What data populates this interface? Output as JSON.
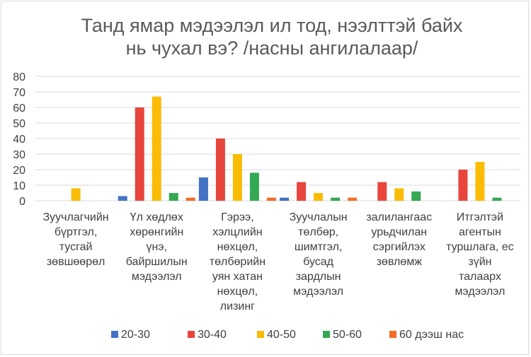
{
  "chart_data": {
    "type": "bar",
    "title": "Танд ямар мэдээлэл ил тод, нээлттэй байх нь чухал вэ? /насны ангилалаар/",
    "title_lines": [
      "Танд ямар мэдээлэл ил тод, нээлттэй байх",
      "нь чухал вэ? /насны ангилалаар/"
    ],
    "xlabel": "",
    "ylabel": "",
    "ylim": [
      0,
      80
    ],
    "yticks": [
      0,
      10,
      20,
      30,
      40,
      50,
      60,
      70,
      80
    ],
    "grid": true,
    "legend_position": "bottom",
    "categories": [
      "Зуучлагчийн бүртгэл, тусгай зөвшөөрөл",
      "Үл хөдлөх хөрөнгийн үнэ, байршилын мэдээлэл",
      "Гэрээ, хэлцлийн нөхцөл, төлбөрийн уян хатан нөхцөл, лизинг",
      "Зуучлалын төлбөр, шимтгэл, бусад зардлын мэдээлэл",
      "залилангаас урьдчилан сэргийлэх зөвлөмж",
      "Итгэлтэй агентын туршлага, ес зүйн талаарх мэдээлэл"
    ],
    "category_lines": [
      [
        "Зуучлагчийн",
        "бүртгэл,",
        "тусгай",
        "зөвшөөрөл"
      ],
      [
        "Үл хөдлөх",
        "хөрөнгийн",
        "үнэ,",
        "байршилын",
        "мэдээлэл"
      ],
      [
        "Гэрээ,",
        "хэлцлийн",
        "нөхцөл,",
        "төлбөрийн",
        "уян хатан",
        "нөхцөл,",
        "лизинг"
      ],
      [
        "Зуучлалын",
        "төлбөр,",
        "шимтгэл,",
        "бусад",
        "зардлын",
        "мэдээлэл"
      ],
      [
        "залилангаас",
        "урьдчилан",
        "сэргийлэх",
        "зөвлөмж"
      ],
      [
        "Итгэлтэй",
        "агентын",
        "туршлага, ес",
        "зүйн",
        "талаарх",
        "мэдээлэл"
      ]
    ],
    "series": [
      {
        "name": "20-30",
        "color": "#4472c4",
        "values": [
          0,
          3,
          15,
          2,
          0,
          0
        ]
      },
      {
        "name": "30-40",
        "color": "#e8453c",
        "values": [
          0,
          60,
          40,
          12,
          12,
          20
        ]
      },
      {
        "name": "40-50",
        "color": "#fbbc05",
        "values": [
          8,
          67,
          30,
          5,
          8,
          25
        ]
      },
      {
        "name": "50-60",
        "color": "#34a853",
        "values": [
          0,
          5,
          18,
          2,
          6,
          2
        ]
      },
      {
        "name": "60 дээш нас",
        "color": "#f46d25",
        "values": [
          0,
          2,
          2,
          2,
          0,
          0
        ]
      }
    ]
  }
}
